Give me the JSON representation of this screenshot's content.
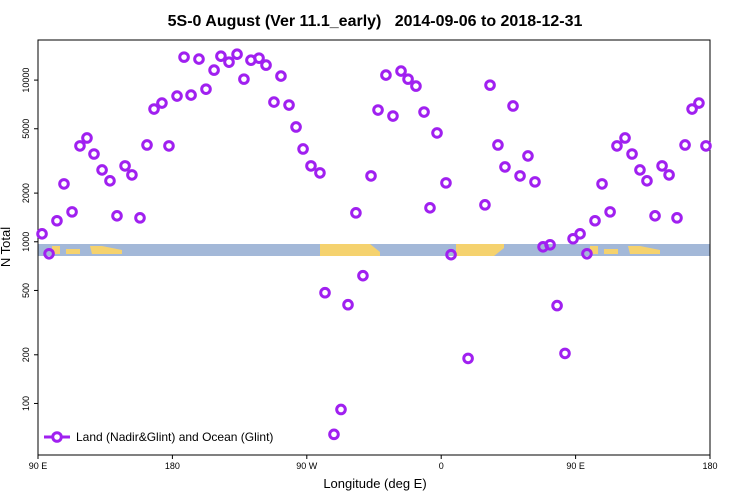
{
  "chart_data": {
    "type": "scatter",
    "title": "5S-0 August (Ver 11.1_early)   2014-09-06 to 2018-12-31",
    "x_label": "Longitude (deg E)",
    "y_label": "N Total",
    "log_y": true,
    "legend": "bottom-left",
    "xlim": [
      90,
      540
    ],
    "ylim": [
      48,
      17700
    ],
    "xticks": [
      {
        "value": 90,
        "label": "90 E"
      },
      {
        "value": 180,
        "label": "180"
      },
      {
        "value": 270,
        "label": "90 W"
      },
      {
        "value": 360,
        "label": "0"
      },
      {
        "value": 450,
        "label": "90 E"
      },
      {
        "value": 540,
        "label": "180"
      }
    ],
    "yticks": [
      100,
      200,
      500,
      1000,
      2000,
      5000,
      10000
    ],
    "series": [
      {
        "name": "Land (Nadir&Glint) and Ocean (Glint)",
        "color": "#a020f0",
        "x": [
          92.7,
          97.4,
          102.7,
          107.4,
          112.8,
          118.1,
          122.8,
          127.5,
          132.9,
          138.2,
          142.9,
          148.3,
          152.9,
          158.3,
          163.0,
          167.7,
          173.0,
          177.7,
          183.1,
          187.8,
          192.5,
          197.8,
          202.5,
          207.9,
          212.5,
          217.9,
          223.3,
          227.9,
          232.6,
          238.0,
          242.7,
          248.0,
          252.7,
          258.1,
          262.8,
          267.5,
          272.8,
          278.8,
          282.2,
          288.2,
          292.9,
          297.6,
          302.9,
          307.6,
          313.0,
          317.7,
          323.0,
          327.7,
          333.1,
          337.8,
          343.1,
          348.5,
          352.5,
          357.2,
          363.2,
          366.6,
          378.0,
          389.3,
          392.7,
          398.0,
          402.7,
          408.1,
          412.8,
          418.1,
          422.8,
          428.2,
          432.9,
          437.6,
          442.9,
          448.3,
          453.0,
          457.6,
          463.0,
          467.7,
          473.1,
          477.7,
          483.1,
          487.8,
          493.1,
          497.8,
          503.2,
          507.9,
          512.6,
          517.9,
          523.3,
          528.0,
          532.6,
          537.3
        ],
        "values": [
          1120,
          843,
          1349,
          2280,
          1531,
          3917,
          4385,
          3490,
          2781,
          2382,
          1447,
          2946,
          2592,
          1406,
          3970,
          6622,
          7211,
          3917,
          7966,
          13870,
          8080,
          13490,
          8790,
          11530,
          14060,
          12910,
          14460,
          10140,
          13280,
          13670,
          12380,
          7311,
          10590,
          7012,
          5129,
          3750,
          2946,
          2667,
          484,
          64.4,
          91.8,
          408,
          1510,
          617,
          2555,
          6530,
          10740,
          5995,
          11370,
          10140,
          9180,
          6346,
          1622,
          4710,
          2314,
          832,
          190,
          1692,
          9310,
          3970,
          2904,
          6918,
          2555,
          3396,
          2347,
          931,
          958,
          403,
          204,
          1044,
          1120,
          843,
          1349,
          2280,
          1531,
          3917,
          4385,
          3490,
          2781,
          2382,
          1447,
          2946,
          2592,
          1406,
          3970,
          6622,
          7211,
          3917
        ]
      }
    ]
  }
}
